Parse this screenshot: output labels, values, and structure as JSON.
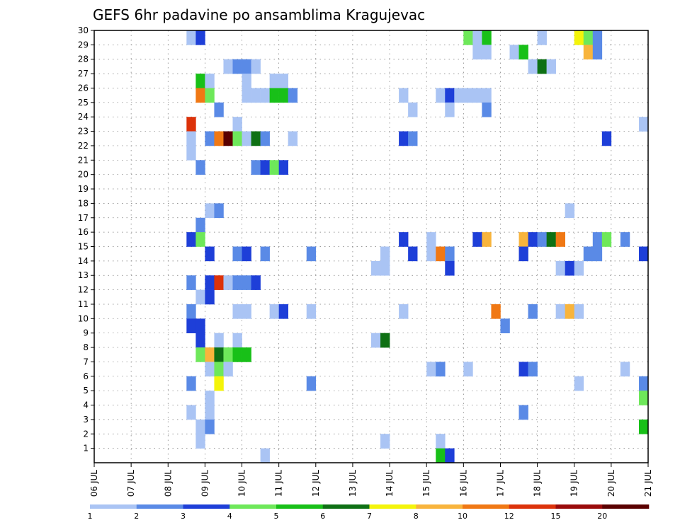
{
  "chart_data": {
    "type": "heatmap",
    "title": "GEFS 6hr padavine po ansamblima Kragujevac",
    "xlabel": "",
    "ylabel": "",
    "x_tick_labels": [
      "06 JUL",
      "07 JUL",
      "08 JUL",
      "09 JUL",
      "10 JUL",
      "11 JUL",
      "12 JUL",
      "13 JUL",
      "14 JUL",
      "15 JUL",
      "16 JUL",
      "17 JUL",
      "18 JUL",
      "19 JUL",
      "20 JUL",
      "21 JUL"
    ],
    "x_range_steps": [
      0,
      60
    ],
    "y_tick_labels": [
      "1",
      "2",
      "3",
      "4",
      "5",
      "6",
      "7",
      "8",
      "9",
      "10",
      "11",
      "12",
      "13",
      "14",
      "15",
      "16",
      "17",
      "18",
      "19",
      "20",
      "21",
      "22",
      "23",
      "24",
      "25",
      "26",
      "27",
      "28",
      "29",
      "30"
    ],
    "y_range": [
      0,
      30
    ],
    "grid": true,
    "legend_position": "bottom",
    "colorbar": {
      "labels": [
        "1",
        "2",
        "3",
        "4",
        "5",
        "6",
        "7",
        "8",
        "10",
        "12",
        "15",
        "20"
      ],
      "colors": [
        "#aac4f4",
        "#5a8ae6",
        "#1e3fd8",
        "#6ee85a",
        "#18c018",
        "#0e7014",
        "#f4f40a",
        "#f8b43c",
        "#f07814",
        "#dc320a",
        "#9a0a0a",
        "#5a0000"
      ]
    },
    "cells": [
      {
        "x": 11,
        "y": 30,
        "v": 1
      },
      {
        "x": 12,
        "y": 30,
        "v": 3
      },
      {
        "x": 41,
        "y": 30,
        "v": 4
      },
      {
        "x": 42,
        "y": 30,
        "v": 1
      },
      {
        "x": 43,
        "y": 30,
        "v": 5
      },
      {
        "x": 49,
        "y": 30,
        "v": 1
      },
      {
        "x": 53,
        "y": 30,
        "v": 7
      },
      {
        "x": 54,
        "y": 30,
        "v": 4
      },
      {
        "x": 55,
        "y": 30,
        "v": 2
      },
      {
        "x": 42,
        "y": 29,
        "v": 1
      },
      {
        "x": 43,
        "y": 29,
        "v": 1
      },
      {
        "x": 46,
        "y": 29,
        "v": 1
      },
      {
        "x": 47,
        "y": 29,
        "v": 5
      },
      {
        "x": 54,
        "y": 29,
        "v": 8
      },
      {
        "x": 55,
        "y": 29,
        "v": 2
      },
      {
        "x": 15,
        "y": 28,
        "v": 1
      },
      {
        "x": 16,
        "y": 28,
        "v": 2
      },
      {
        "x": 17,
        "y": 28,
        "v": 2
      },
      {
        "x": 18,
        "y": 28,
        "v": 1
      },
      {
        "x": 48,
        "y": 28,
        "v": 1
      },
      {
        "x": 49,
        "y": 28,
        "v": 6
      },
      {
        "x": 50,
        "y": 28,
        "v": 1
      },
      {
        "x": 12,
        "y": 27,
        "v": 5
      },
      {
        "x": 13,
        "y": 27,
        "v": 1
      },
      {
        "x": 17,
        "y": 27,
        "v": 1
      },
      {
        "x": 20,
        "y": 27,
        "v": 1
      },
      {
        "x": 21,
        "y": 27,
        "v": 1
      },
      {
        "x": 12,
        "y": 26,
        "v": 9
      },
      {
        "x": 13,
        "y": 26,
        "v": 4
      },
      {
        "x": 17,
        "y": 26,
        "v": 1
      },
      {
        "x": 18,
        "y": 26,
        "v": 1
      },
      {
        "x": 19,
        "y": 26,
        "v": 1
      },
      {
        "x": 20,
        "y": 26,
        "v": 5
      },
      {
        "x": 21,
        "y": 26,
        "v": 5
      },
      {
        "x": 22,
        "y": 26,
        "v": 2
      },
      {
        "x": 34,
        "y": 26,
        "v": 1
      },
      {
        "x": 38,
        "y": 26,
        "v": 1
      },
      {
        "x": 39,
        "y": 26,
        "v": 3
      },
      {
        "x": 40,
        "y": 26,
        "v": 1
      },
      {
        "x": 41,
        "y": 26,
        "v": 1
      },
      {
        "x": 42,
        "y": 26,
        "v": 1
      },
      {
        "x": 43,
        "y": 26,
        "v": 1
      },
      {
        "x": 14,
        "y": 25,
        "v": 2
      },
      {
        "x": 35,
        "y": 25,
        "v": 1
      },
      {
        "x": 39,
        "y": 25,
        "v": 1
      },
      {
        "x": 43,
        "y": 25,
        "v": 2
      },
      {
        "x": 11,
        "y": 24,
        "v": 10
      },
      {
        "x": 16,
        "y": 24,
        "v": 1
      },
      {
        "x": 60,
        "y": 24,
        "v": 1
      },
      {
        "x": 11,
        "y": 23,
        "v": 1
      },
      {
        "x": 13,
        "y": 23,
        "v": 2
      },
      {
        "x": 14,
        "y": 23,
        "v": 9
      },
      {
        "x": 15,
        "y": 23,
        "v": 12
      },
      {
        "x": 16,
        "y": 23,
        "v": 4
      },
      {
        "x": 17,
        "y": 23,
        "v": 1
      },
      {
        "x": 18,
        "y": 23,
        "v": 6
      },
      {
        "x": 19,
        "y": 23,
        "v": 2
      },
      {
        "x": 22,
        "y": 23,
        "v": 1
      },
      {
        "x": 34,
        "y": 23,
        "v": 3
      },
      {
        "x": 35,
        "y": 23,
        "v": 2
      },
      {
        "x": 56,
        "y": 23,
        "v": 3
      },
      {
        "x": 11,
        "y": 22,
        "v": 1
      },
      {
        "x": 12,
        "y": 21,
        "v": 2
      },
      {
        "x": 18,
        "y": 21,
        "v": 2
      },
      {
        "x": 19,
        "y": 21,
        "v": 3
      },
      {
        "x": 20,
        "y": 21,
        "v": 4
      },
      {
        "x": 21,
        "y": 21,
        "v": 3
      },
      {
        "x": 13,
        "y": 18,
        "v": 1
      },
      {
        "x": 14,
        "y": 18,
        "v": 2
      },
      {
        "x": 52,
        "y": 18,
        "v": 1
      },
      {
        "x": 12,
        "y": 17,
        "v": 2
      },
      {
        "x": 11,
        "y": 16,
        "v": 3
      },
      {
        "x": 12,
        "y": 16,
        "v": 4
      },
      {
        "x": 34,
        "y": 16,
        "v": 3
      },
      {
        "x": 37,
        "y": 16,
        "v": 1
      },
      {
        "x": 42,
        "y": 16,
        "v": 3
      },
      {
        "x": 43,
        "y": 16,
        "v": 8
      },
      {
        "x": 47,
        "y": 16,
        "v": 8
      },
      {
        "x": 48,
        "y": 16,
        "v": 3
      },
      {
        "x": 49,
        "y": 16,
        "v": 2
      },
      {
        "x": 50,
        "y": 16,
        "v": 6
      },
      {
        "x": 51,
        "y": 16,
        "v": 9
      },
      {
        "x": 55,
        "y": 16,
        "v": 2
      },
      {
        "x": 56,
        "y": 16,
        "v": 4
      },
      {
        "x": 58,
        "y": 16,
        "v": 2
      },
      {
        "x": 13,
        "y": 15,
        "v": 3
      },
      {
        "x": 16,
        "y": 15,
        "v": 2
      },
      {
        "x": 17,
        "y": 15,
        "v": 3
      },
      {
        "x": 19,
        "y": 15,
        "v": 2
      },
      {
        "x": 24,
        "y": 15,
        "v": 2
      },
      {
        "x": 32,
        "y": 15,
        "v": 1
      },
      {
        "x": 35,
        "y": 15,
        "v": 3
      },
      {
        "x": 37,
        "y": 15,
        "v": 1
      },
      {
        "x": 38,
        "y": 15,
        "v": 9
      },
      {
        "x": 39,
        "y": 15,
        "v": 2
      },
      {
        "x": 47,
        "y": 15,
        "v": 3
      },
      {
        "x": 54,
        "y": 15,
        "v": 2
      },
      {
        "x": 55,
        "y": 15,
        "v": 2
      },
      {
        "x": 60,
        "y": 15,
        "v": 3
      },
      {
        "x": 31,
        "y": 14,
        "v": 1
      },
      {
        "x": 32,
        "y": 14,
        "v": 1
      },
      {
        "x": 39,
        "y": 14,
        "v": 3
      },
      {
        "x": 51,
        "y": 14,
        "v": 1
      },
      {
        "x": 52,
        "y": 14,
        "v": 3
      },
      {
        "x": 53,
        "y": 14,
        "v": 1
      },
      {
        "x": 11,
        "y": 13,
        "v": 2
      },
      {
        "x": 13,
        "y": 13,
        "v": 3
      },
      {
        "x": 14,
        "y": 13,
        "v": 10
      },
      {
        "x": 15,
        "y": 13,
        "v": 1
      },
      {
        "x": 16,
        "y": 13,
        "v": 2
      },
      {
        "x": 17,
        "y": 13,
        "v": 2
      },
      {
        "x": 18,
        "y": 13,
        "v": 3
      },
      {
        "x": 12,
        "y": 12,
        "v": 1
      },
      {
        "x": 13,
        "y": 12,
        "v": 3
      },
      {
        "x": 11,
        "y": 11,
        "v": 2
      },
      {
        "x": 16,
        "y": 11,
        "v": 1
      },
      {
        "x": 17,
        "y": 11,
        "v": 1
      },
      {
        "x": 20,
        "y": 11,
        "v": 1
      },
      {
        "x": 21,
        "y": 11,
        "v": 3
      },
      {
        "x": 24,
        "y": 11,
        "v": 1
      },
      {
        "x": 34,
        "y": 11,
        "v": 1
      },
      {
        "x": 44,
        "y": 11,
        "v": 9
      },
      {
        "x": 48,
        "y": 11,
        "v": 2
      },
      {
        "x": 51,
        "y": 11,
        "v": 1
      },
      {
        "x": 52,
        "y": 11,
        "v": 8
      },
      {
        "x": 53,
        "y": 11,
        "v": 1
      },
      {
        "x": 11,
        "y": 10,
        "v": 3
      },
      {
        "x": 12,
        "y": 10,
        "v": 3
      },
      {
        "x": 45,
        "y": 10,
        "v": 2
      },
      {
        "x": 12,
        "y": 9,
        "v": 3
      },
      {
        "x": 14,
        "y": 9,
        "v": 1
      },
      {
        "x": 16,
        "y": 9,
        "v": 1
      },
      {
        "x": 31,
        "y": 9,
        "v": 1
      },
      {
        "x": 32,
        "y": 9,
        "v": 6
      },
      {
        "x": 12,
        "y": 8,
        "v": 4
      },
      {
        "x": 13,
        "y": 8,
        "v": 8
      },
      {
        "x": 14,
        "y": 8,
        "v": 6
      },
      {
        "x": 15,
        "y": 8,
        "v": 4
      },
      {
        "x": 16,
        "y": 8,
        "v": 5
      },
      {
        "x": 17,
        "y": 8,
        "v": 5
      },
      {
        "x": 13,
        "y": 7,
        "v": 1
      },
      {
        "x": 14,
        "y": 7,
        "v": 4
      },
      {
        "x": 15,
        "y": 7,
        "v": 1
      },
      {
        "x": 37,
        "y": 7,
        "v": 1
      },
      {
        "x": 38,
        "y": 7,
        "v": 2
      },
      {
        "x": 41,
        "y": 7,
        "v": 1
      },
      {
        "x": 47,
        "y": 7,
        "v": 3
      },
      {
        "x": 48,
        "y": 7,
        "v": 2
      },
      {
        "x": 58,
        "y": 7,
        "v": 1
      },
      {
        "x": 11,
        "y": 6,
        "v": 2
      },
      {
        "x": 14,
        "y": 6,
        "v": 7
      },
      {
        "x": 24,
        "y": 6,
        "v": 2
      },
      {
        "x": 53,
        "y": 6,
        "v": 1
      },
      {
        "x": 60,
        "y": 6,
        "v": 2
      },
      {
        "x": 13,
        "y": 5,
        "v": 1
      },
      {
        "x": 60,
        "y": 5,
        "v": 4
      },
      {
        "x": 11,
        "y": 4,
        "v": 1
      },
      {
        "x": 13,
        "y": 4,
        "v": 1
      },
      {
        "x": 47,
        "y": 4,
        "v": 2
      },
      {
        "x": 12,
        "y": 3,
        "v": 1
      },
      {
        "x": 13,
        "y": 3,
        "v": 2
      },
      {
        "x": 60,
        "y": 3,
        "v": 5
      },
      {
        "x": 12,
        "y": 2,
        "v": 1
      },
      {
        "x": 32,
        "y": 2,
        "v": 1
      },
      {
        "x": 38,
        "y": 2,
        "v": 1
      },
      {
        "x": 19,
        "y": 1,
        "v": 1
      },
      {
        "x": 38,
        "y": 1,
        "v": 5
      },
      {
        "x": 39,
        "y": 1,
        "v": 3
      }
    ]
  }
}
